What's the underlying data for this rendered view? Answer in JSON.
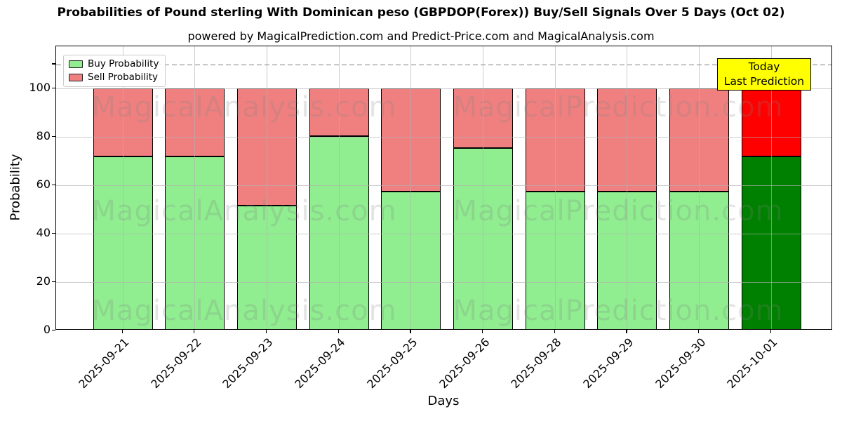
{
  "chart_data": {
    "type": "bar",
    "stacked": true,
    "title": "Probabilities of Pound sterling With Dominican peso (GBPDOP(Forex)) Buy/Sell Signals Over 5 Days (Oct 02)",
    "subtitle": "powered by MagicalPrediction.com and Predict-Price.com and MagicalAnalysis.com",
    "xlabel": "Days",
    "ylabel": "Probability",
    "categories": [
      "2025-09-21",
      "2025-09-22",
      "2025-09-23",
      "2025-09-24",
      "2025-09-25",
      "2025-09-26",
      "2025-09-28",
      "2025-09-29",
      "2025-09-30",
      "2025-10-01"
    ],
    "series": [
      {
        "name": "Buy Probability",
        "color": "#90ee90",
        "last_bar_color": "#008000",
        "values": [
          72,
          72,
          51.5,
          80.5,
          57.5,
          75.5,
          57.5,
          57.5,
          57.5,
          72
        ]
      },
      {
        "name": "Sell Probability",
        "color": "#f08080",
        "last_bar_color": "#ff0000",
        "values": [
          28,
          28,
          48.5,
          19.5,
          42.5,
          24.5,
          42.5,
          42.5,
          42.5,
          28
        ]
      }
    ],
    "ylim": [
      0,
      117.5
    ],
    "yticks": [
      0,
      20,
      40,
      60,
      80,
      100
    ],
    "dashed_line_y": 110,
    "grid": true,
    "legend_position": "upper left",
    "annotation": {
      "lines": [
        "Today",
        "Last Prediction"
      ],
      "bg_color": "#ffff00",
      "border_color": "#000000"
    },
    "watermarks": {
      "left_text": "MagicalAnalysis.com",
      "right_text": "MagicalPrediction.com"
    },
    "colors": {
      "grid": "#b0b0b0",
      "dashed_line": "#7f7f7f",
      "spine": "#000000",
      "background": "#ffffff"
    }
  }
}
